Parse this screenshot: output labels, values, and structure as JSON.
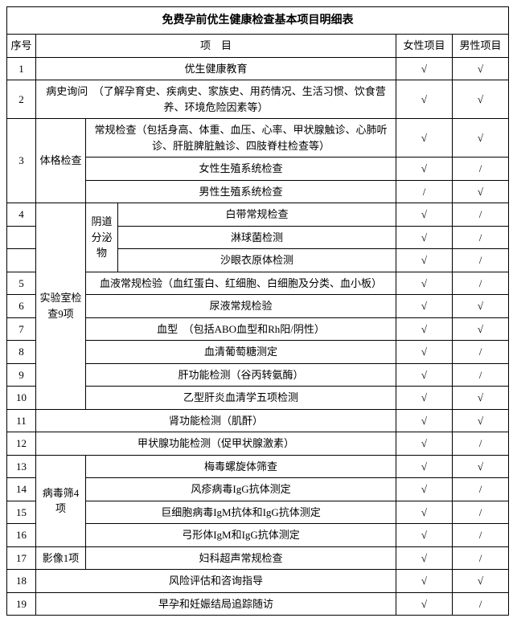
{
  "title": "免费孕前优生健康检查基本项目明细表",
  "headers": {
    "seq": "序号",
    "item": "项　目",
    "female": "女性项目",
    "male": "男性项目"
  },
  "check": "√",
  "slash": "/",
  "rows": [
    {
      "seq": "1",
      "item": "优生健康教育"
    },
    {
      "seq": "2",
      "item": "病史询问　（了解孕育史、疾病史、家族史、用药情况、生活习惯、饮食营养、环境危险因素等）"
    },
    {
      "seq": "3"
    },
    {
      "cat": "体格检查"
    },
    {
      "sub3_1": "常规检查（包括身高、体重、血压、心率、甲状腺触诊、心肺听诊、肝脏脾脏触诊、四肢脊柱检查等）"
    },
    {
      "sub3_2": "女性生殖系统检查"
    },
    {
      "sub3_3": "男性生殖系统检查"
    },
    {
      "seq": "4"
    },
    {
      "sub4_cat": "阴道分泌物"
    },
    {
      "sub4_1": "白带常规检查"
    },
    {
      "sub4_2": "淋球菌检测"
    },
    {
      "sub4_3": "沙眼衣原体检测"
    },
    {
      "seq": "5",
      "item": "血液常规检验（血红蛋白、红细胞、白细胞及分类、血小板）"
    },
    {
      "seq": "6",
      "item": "尿液常规检验"
    },
    {
      "cat_lab": "实验室检查9项"
    },
    {
      "seq": "7",
      "item": "血型　（包括ABO血型和Rh阳/阴性）"
    },
    {
      "seq": "8",
      "item": "血清葡萄糖测定"
    },
    {
      "seq": "9",
      "item": "肝功能检测（谷丙转氨酶）"
    },
    {
      "seq": "10",
      "item": "乙型肝炎血清学五项检测"
    },
    {
      "seq": "11",
      "item": "肾功能检测（肌酐）"
    },
    {
      "seq": "12",
      "item": "甲状腺功能检测（促甲状腺激素）"
    },
    {
      "seq": "13",
      "item": "梅毒螺旋体筛查"
    },
    {
      "cat_virus": "病毒筛4项"
    },
    {
      "seq": "14",
      "item": "风疹病毒IgG抗体测定"
    },
    {
      "seq": "15",
      "item": "巨细胞病毒IgM抗体和IgG抗体测定"
    },
    {
      "seq": "16",
      "item": "弓形体IgM和IgG抗体测定"
    },
    {
      "seq": "17",
      "cat_img": "影像1项",
      "item": "妇科超声常规检查"
    },
    {
      "seq": "18",
      "item": "风险评估和咨询指导"
    },
    {
      "seq": "19",
      "item": "早孕和妊娠结局追踪随访"
    }
  ],
  "marks": {
    "r1": [
      "√",
      "√"
    ],
    "r2": [
      "√",
      "√"
    ],
    "r3_1": [
      "√",
      "√"
    ],
    "r3_2": [
      "√",
      "/"
    ],
    "r3_3": [
      "/",
      "√"
    ],
    "r4_1": [
      "√",
      "/"
    ],
    "r4_2": [
      "√",
      "/"
    ],
    "r4_3": [
      "√",
      "/"
    ],
    "r5": [
      "√",
      "/"
    ],
    "r6": [
      "√",
      "√"
    ],
    "r7": [
      "√",
      "√"
    ],
    "r8": [
      "√",
      "/"
    ],
    "r9": [
      "√",
      "/"
    ],
    "r10": [
      "√",
      "√"
    ],
    "r11": [
      "√",
      "√"
    ],
    "r12": [
      "√",
      "/"
    ],
    "r13": [
      "√",
      "√"
    ],
    "r14": [
      "√",
      "/"
    ],
    "r15": [
      "√",
      "/"
    ],
    "r16": [
      "√",
      "/"
    ],
    "r17": [
      "√",
      "/"
    ],
    "r18": [
      "√",
      "√"
    ],
    "r19": [
      "√",
      "/"
    ]
  }
}
